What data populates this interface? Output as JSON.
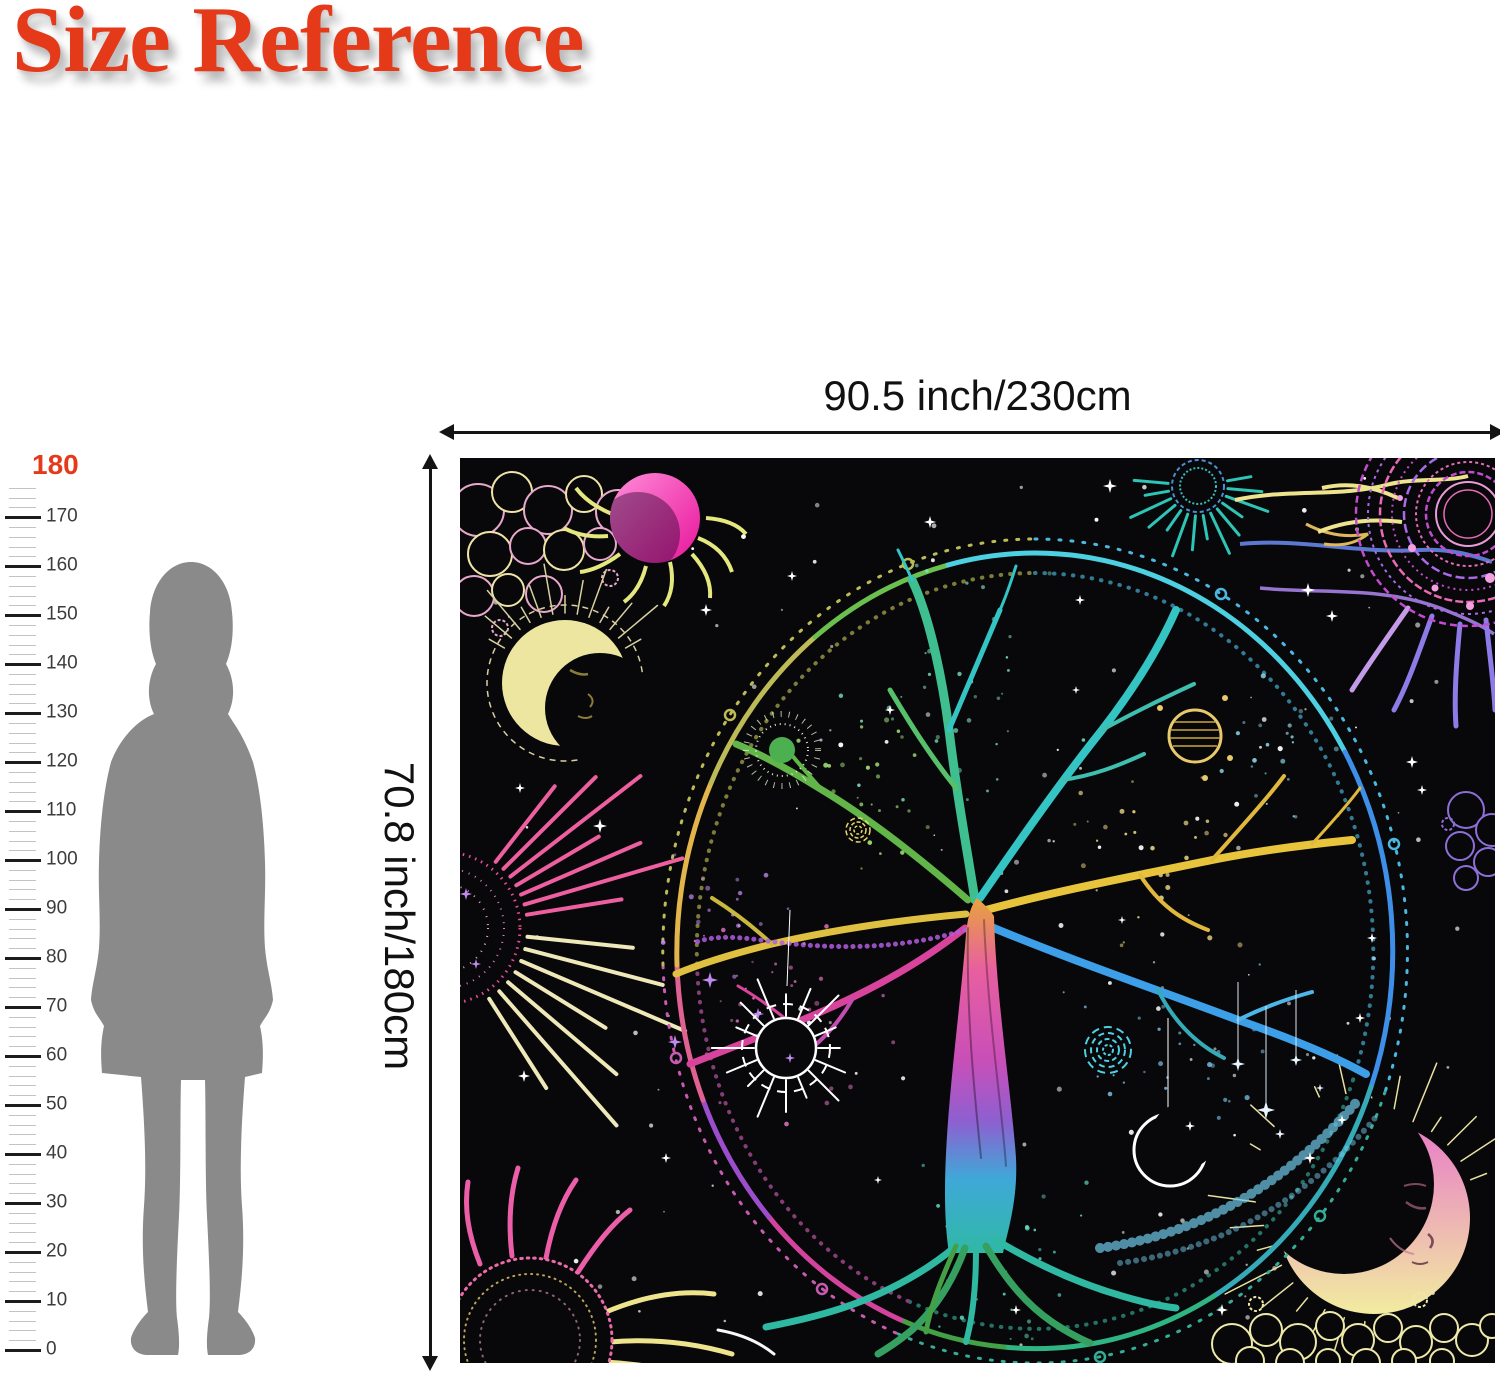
{
  "header": {
    "title": "Size Reference"
  },
  "ruler": {
    "max_label": "180",
    "tick_labels": [
      "170",
      "160",
      "150",
      "140",
      "130",
      "120",
      "110",
      "100",
      "90",
      "80",
      "70",
      "60",
      "50",
      "40",
      "30",
      "20",
      "10",
      "0"
    ]
  },
  "dimensions": {
    "width_label": "90.5 inch/230cm",
    "height_label": "70.8 inch/180cm"
  },
  "figure": {
    "name": "woman-silhouette"
  },
  "tapestry": {
    "motifs": [
      "tree-of-life",
      "mandala-ring",
      "white-sun",
      "hanging-crescent-moon",
      "eclipse-sun",
      "moon-face",
      "concentric-rings-sun",
      "radiant-sun",
      "dotted-planet",
      "sleeping-moon-face",
      "clouds",
      "star-field"
    ]
  },
  "colors": {
    "accent_orange": "#E43A1A",
    "silhouette_gray": "#8A8A8A",
    "tapestry_background": "#08080A",
    "tapestry_palette": [
      "#4DD0E1",
      "#6BBF4E",
      "#E8C43D",
      "#E85FA0",
      "#9C4DCC",
      "#3D9FE8",
      "#2FB9A3",
      "#D2449C"
    ]
  }
}
